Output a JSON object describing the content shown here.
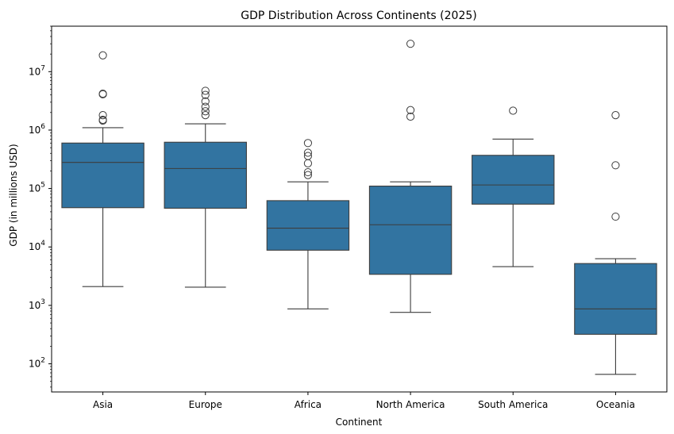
{
  "chart_data": {
    "type": "box",
    "title": "GDP Distribution Across Continents (2025)",
    "xlabel": "Continent",
    "ylabel": "GDP (in millions USD)",
    "yscale": "log",
    "ylim": [
      33,
      60000000
    ],
    "y_ticks": [
      {
        "value": 100,
        "base": "10",
        "exp": "2"
      },
      {
        "value": 1000,
        "base": "10",
        "exp": "3"
      },
      {
        "value": 10000,
        "base": "10",
        "exp": "4"
      },
      {
        "value": 100000,
        "base": "10",
        "exp": "5"
      },
      {
        "value": 1000000,
        "base": "10",
        "exp": "6"
      },
      {
        "value": 10000000,
        "base": "10",
        "exp": "7"
      }
    ],
    "grid": false,
    "box_color": "#3274a1",
    "line_color": "#3d3d3d",
    "categories": [
      "Asia",
      "Europe",
      "Africa",
      "North America",
      "South America",
      "Oceania"
    ],
    "boxes": [
      {
        "name": "Asia",
        "whisker_low": 2100,
        "q1": 47000,
        "median": 280000,
        "q3": 600000,
        "whisker_high": 1100000,
        "outliers": [
          19000000,
          4200000,
          4100000,
          1800000,
          1500000,
          1450000
        ]
      },
      {
        "name": "Europe",
        "whisker_low": 2050,
        "q1": 46000,
        "median": 220000,
        "q3": 620000,
        "whisker_high": 1280000,
        "outliers": [
          4700000,
          4000000,
          3100000,
          2500000,
          2100000,
          1800000
        ]
      },
      {
        "name": "Africa",
        "whisker_low": 870,
        "q1": 8800,
        "median": 21000,
        "q3": 62000,
        "whisker_high": 130000,
        "outliers": [
          600000,
          410000,
          360000,
          270000,
          190000,
          170000
        ]
      },
      {
        "name": "North America",
        "whisker_low": 760,
        "q1": 3400,
        "median": 24000,
        "q3": 110000,
        "whisker_high": 130000,
        "outliers": [
          30000000,
          2200000,
          1700000
        ]
      },
      {
        "name": "South America",
        "whisker_low": 4600,
        "q1": 54000,
        "median": 115000,
        "q3": 370000,
        "whisker_high": 700000,
        "outliers": [
          2150000
        ]
      },
      {
        "name": "Oceania",
        "whisker_low": 66,
        "q1": 320,
        "median": 870,
        "q3": 5200,
        "whisker_high": 6300,
        "outliers": [
          1800000,
          250000,
          33000
        ]
      }
    ]
  }
}
